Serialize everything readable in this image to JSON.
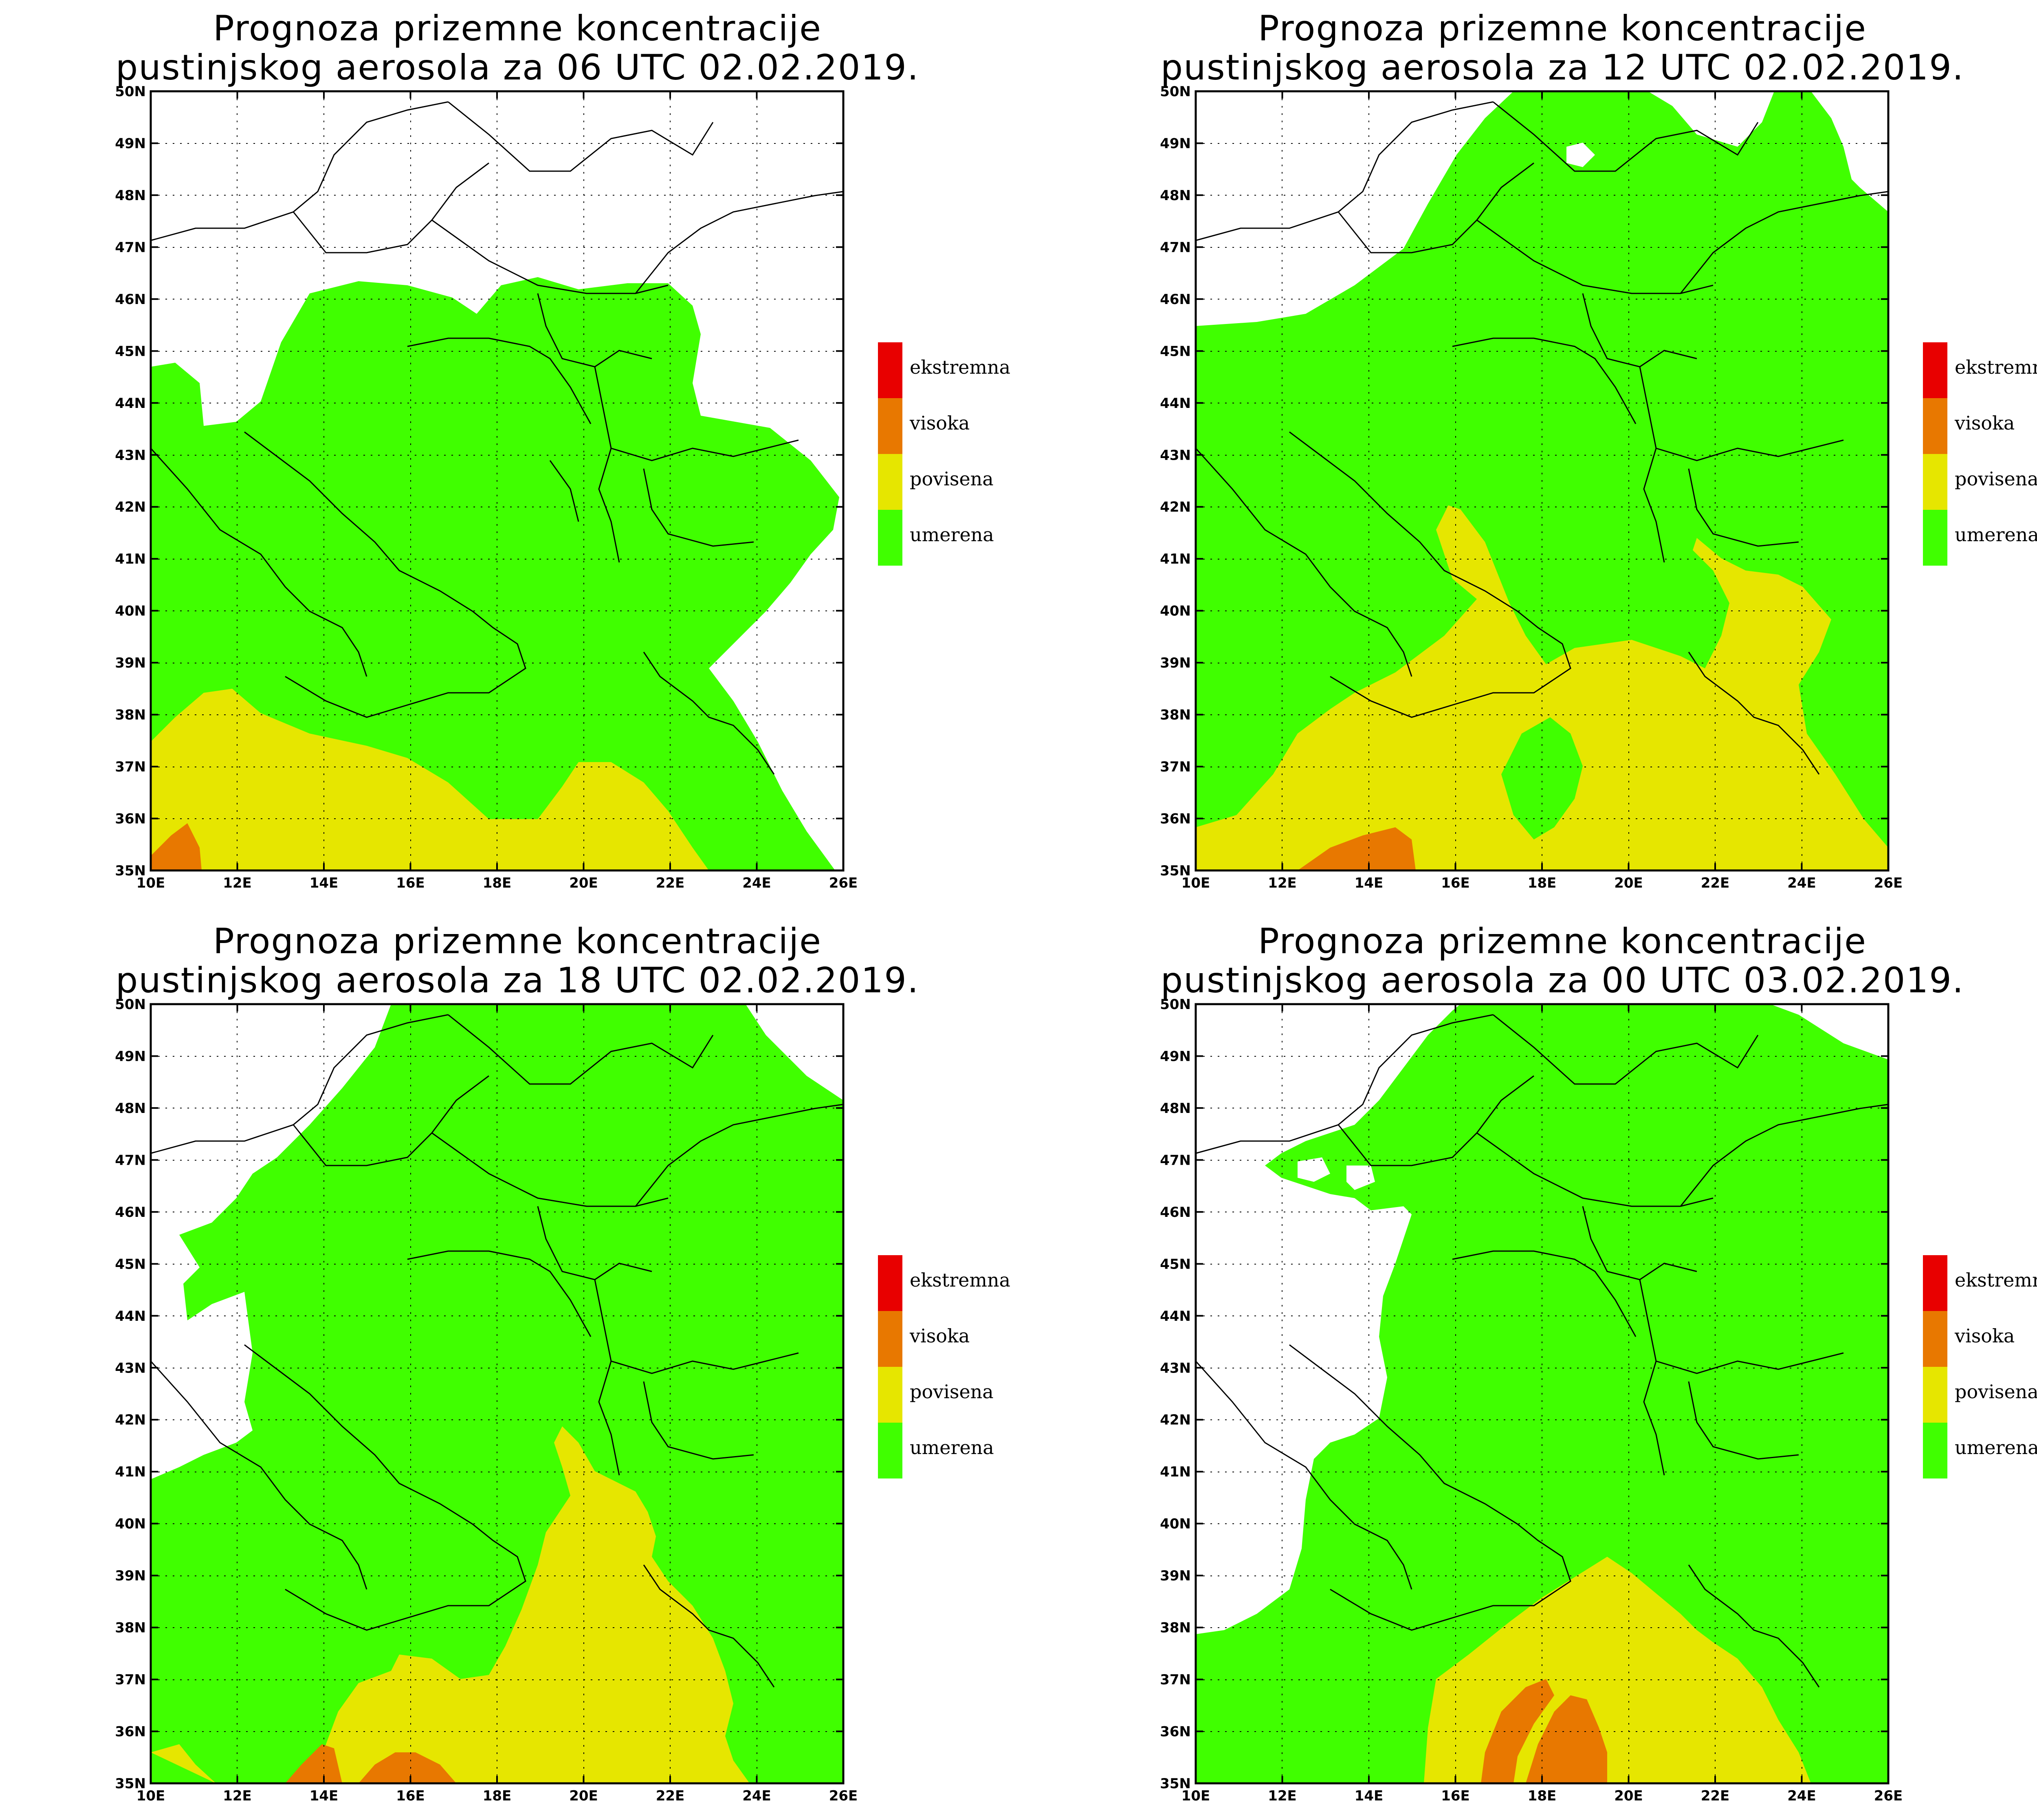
{
  "panels": [
    {
      "title_line1": "Prognoza prizemne koncentracije",
      "title_line2": "pustinjskog aerosola za 06 UTC 02.02.2019."
    },
    {
      "title_line1": "Prognoza prizemne koncentracije",
      "title_line2": "pustinjskog aerosola za 12 UTC 02.02.2019."
    },
    {
      "title_line1": "Prognoza prizemne koncentracije",
      "title_line2": "pustinjskog aerosola za 18 UTC 02.02.2019."
    },
    {
      "title_line1": "Prognoza prizemne koncentracije",
      "title_line2": "pustinjskog aerosola za 00 UTC 03.02.2019."
    }
  ],
  "legend": [
    {
      "label": "ekstremna",
      "color": "#e80000"
    },
    {
      "label": "visoka",
      "color": "#e87800"
    },
    {
      "label": "povisena",
      "color": "#e6e600"
    },
    {
      "label": "umerena",
      "color": "#40ff00"
    }
  ],
  "axes": {
    "lon_labels": [
      "10E",
      "12E",
      "14E",
      "16E",
      "18E",
      "20E",
      "22E",
      "24E",
      "26E"
    ],
    "lat_labels": [
      "35N",
      "36N",
      "37N",
      "38N",
      "39N",
      "40N",
      "41N",
      "42N",
      "43N",
      "44N",
      "45N",
      "46N",
      "47N",
      "48N",
      "49N",
      "50N"
    ]
  },
  "colors": {
    "umerena": "#40ff00",
    "povisena": "#e6e600",
    "visoka": "#e87800",
    "ekstremna": "#e80000"
  }
}
